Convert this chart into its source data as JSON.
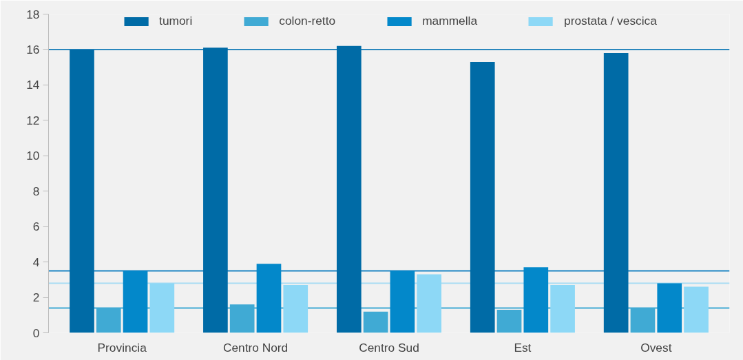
{
  "chart_data": {
    "type": "bar",
    "categories": [
      "Provincia",
      "Centro Nord",
      "Centro Sud",
      "Est",
      "Ovest"
    ],
    "series": [
      {
        "name": "tumori",
        "color": "#006ba6",
        "values": [
          16.0,
          16.1,
          16.2,
          15.3,
          15.8
        ]
      },
      {
        "name": "colon-retto",
        "color": "#40aad4",
        "values": [
          1.4,
          1.6,
          1.2,
          1.3,
          1.4
        ]
      },
      {
        "name": "mammella",
        "color": "#0388ca",
        "values": [
          3.5,
          3.9,
          3.5,
          3.7,
          2.8
        ]
      },
      {
        "name": "prostata / vescica",
        "color": "#8dd8f6",
        "values": [
          2.8,
          2.7,
          3.3,
          2.7,
          2.6
        ]
      }
    ],
    "ylim": [
      0,
      18
    ],
    "yticks": [
      0,
      2,
      4,
      6,
      8,
      10,
      12,
      14,
      16,
      18
    ],
    "ref_lines": [
      {
        "axis": "y",
        "value": 16.0,
        "color": "#2a87bd"
      },
      {
        "axis": "y",
        "value": 3.5,
        "color": "#1f86c4"
      },
      {
        "axis": "y",
        "value": 2.8,
        "color": "#a8dcf4"
      },
      {
        "axis": "y",
        "value": 1.4,
        "color": "#40aad4"
      }
    ],
    "grid": false,
    "legend": "top"
  }
}
